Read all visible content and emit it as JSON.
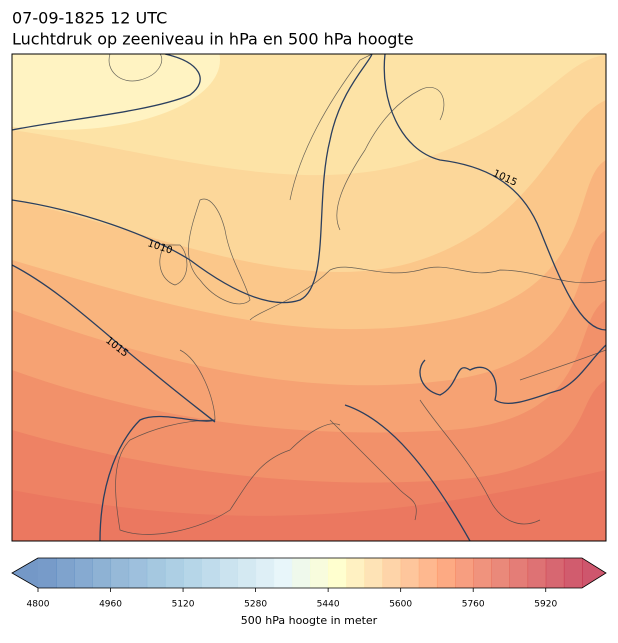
{
  "title": {
    "line1": "07-09-1825 12 UTC",
    "line2": "Luchtdruk op zeeniveau in hPa en 500 hPa hoogte"
  },
  "map": {
    "isobar_labels": [
      "1015",
      "1010",
      "1015"
    ]
  },
  "colorbar": {
    "label": "500 hPa hoogte in meter",
    "range": [
      4800,
      6000
    ],
    "ticks": [
      4800,
      4960,
      5120,
      5280,
      5440,
      5600,
      5760,
      5920
    ]
  }
}
